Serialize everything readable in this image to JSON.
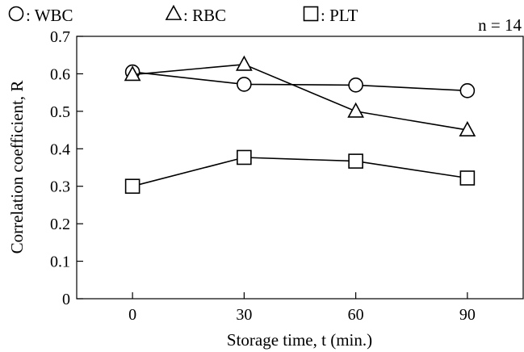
{
  "chart_data": {
    "type": "line",
    "xlabel": "Storage time, t (min.)",
    "ylabel": "Correlation coefficient, R",
    "annotation": "n = 14",
    "xlim": [
      -15,
      105
    ],
    "ylim": [
      0,
      0.7
    ],
    "x_ticks": [
      0,
      30,
      60,
      90
    ],
    "y_ticks": [
      0,
      0.1,
      0.2,
      0.3,
      0.4,
      0.5,
      0.6,
      0.7
    ],
    "x_tick_labels": [
      "0",
      "30",
      "60",
      "90"
    ],
    "y_tick_labels": [
      "0",
      "0.1",
      "0.2",
      "0.3",
      "0.4",
      "0.5",
      "0.6",
      "0.7"
    ],
    "grid": false,
    "legend_position": "top",
    "x": [
      0,
      30,
      60,
      90
    ],
    "series": [
      {
        "name": ": WBC",
        "marker": "circle",
        "values": [
          0.605,
          0.572,
          0.57,
          0.555
        ]
      },
      {
        "name": ": RBC",
        "marker": "triangle",
        "values": [
          0.598,
          0.625,
          0.5,
          0.45
        ]
      },
      {
        "name": ": PLT",
        "marker": "square",
        "values": [
          0.3,
          0.377,
          0.367,
          0.322
        ]
      }
    ]
  }
}
